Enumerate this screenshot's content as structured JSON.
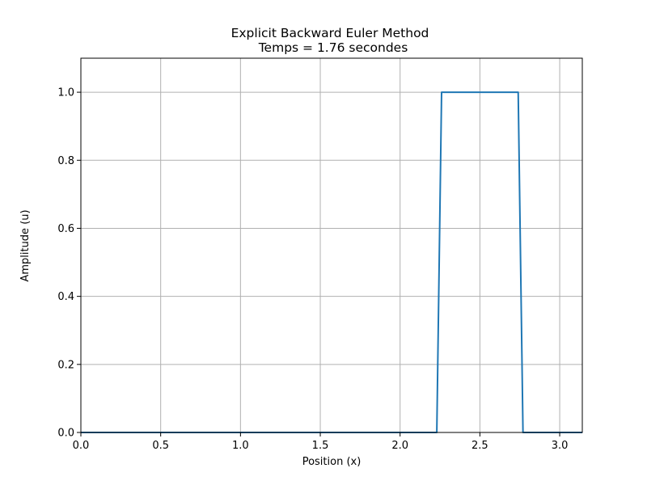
{
  "chart_data": {
    "type": "line",
    "title": "Explicit Backward Euler Method",
    "subtitle": "Temps = 1.76 secondes",
    "xlabel": "Position (x)",
    "ylabel": "Amplitude (u)",
    "xlim": [
      0,
      3.1416
    ],
    "ylim": [
      0,
      1.1
    ],
    "xticks": [
      0.0,
      0.5,
      1.0,
      1.5,
      2.0,
      2.5,
      3.0
    ],
    "xtick_labels": [
      "0.0",
      "0.5",
      "1.0",
      "1.5",
      "2.0",
      "2.5",
      "3.0"
    ],
    "yticks": [
      0.0,
      0.2,
      0.4,
      0.6,
      0.8,
      1.0
    ],
    "ytick_labels": [
      "0.0",
      "0.2",
      "0.4",
      "0.6",
      "0.8",
      "1.0"
    ],
    "grid": true,
    "colors": {
      "line": "#1f77b4",
      "grid": "#b0b0b0",
      "axes": "#000000"
    },
    "series": [
      {
        "x": [
          0.0,
          2.23,
          2.26,
          2.74,
          2.77,
          3.1416
        ],
        "y": [
          0.0,
          0.0,
          1.0,
          1.0,
          0.0,
          0.0
        ]
      }
    ]
  }
}
